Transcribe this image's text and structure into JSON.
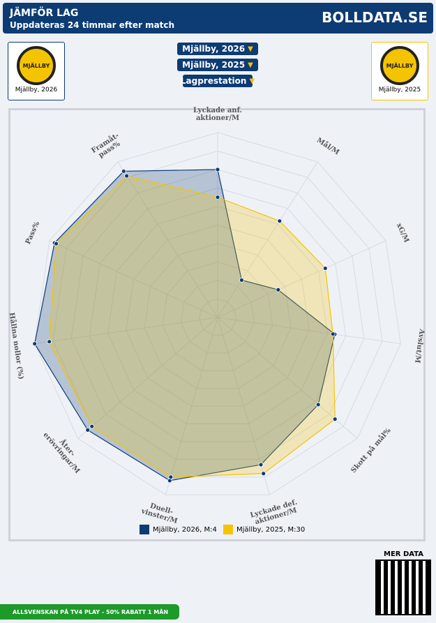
{
  "header": {
    "title": "JÄMFÖR LAG",
    "subtitle": "Uppdateras 24 timmar efter match",
    "brand": "BOLLDATA.SE"
  },
  "teams": {
    "left": "Mjällby, 2026",
    "right": "Mjällby, 2025"
  },
  "selectors": [
    "Mjällby, 2026",
    "Mjällby, 2025",
    "Lagprestation"
  ],
  "more_data": "MER DATA",
  "promo": "ALLSVENSKAN PÅ TV4 PLAY - 50% RABATT 1 MÅN",
  "chart_data": {
    "type": "radar",
    "categories": [
      "Lyckade anf.\naktioner/M",
      "Mål/M",
      "xG/M",
      "Avslut/M",
      "Skott på mål%",
      "Lyckade def.\naktioner/M",
      "Duell-\nvinster/M",
      "Åter-\nerövringar/M",
      "Hållna nollor (%)",
      "Pass%",
      "Framåt-\npass%"
    ],
    "series": [
      {
        "name": "Mjällby, 2026, M:4",
        "color": "#0d3b73",
        "values": [
          80,
          24,
          36,
          64,
          72,
          83,
          92,
          93,
          100,
          97,
          94
        ]
      },
      {
        "name": "Mjällby, 2025, M:30",
        "color": "#f5c400",
        "values": [
          65,
          62,
          64,
          63,
          84,
          88,
          90,
          90,
          92,
          96,
          91
        ]
      }
    ],
    "rlim": [
      0,
      100
    ],
    "rticks": [
      10,
      20,
      30,
      40,
      50,
      60,
      70,
      80,
      90,
      100
    ],
    "grid": true,
    "legend": "bottom"
  }
}
